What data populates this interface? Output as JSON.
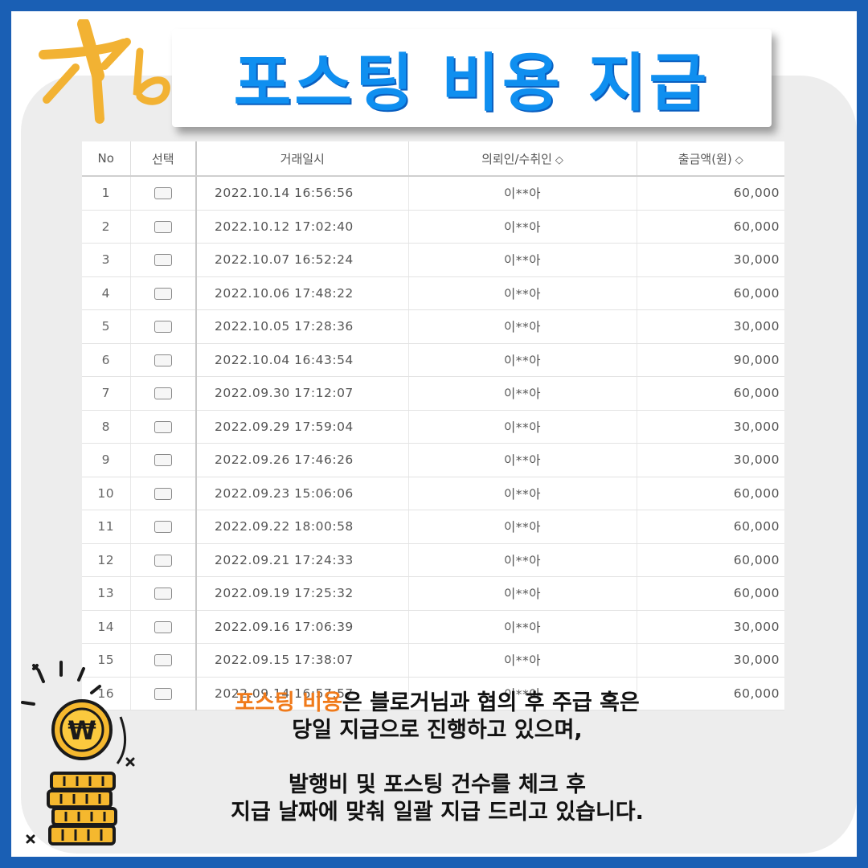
{
  "logo": {
    "text": "Kb"
  },
  "title": "포스팅 비용 지급",
  "table": {
    "headers": {
      "no": "No",
      "select": "선택",
      "datetime": "거래일시",
      "party": "의뢰인/수취인",
      "amount": "출금액(원)",
      "sort_icon": "◇"
    },
    "rows": [
      {
        "no": "1",
        "datetime": "2022.10.14  16:56:56",
        "party": "이**아",
        "amount": "60,000"
      },
      {
        "no": "2",
        "datetime": "2022.10.12  17:02:40",
        "party": "이**아",
        "amount": "60,000"
      },
      {
        "no": "3",
        "datetime": "2022.10.07  16:52:24",
        "party": "이**아",
        "amount": "30,000"
      },
      {
        "no": "4",
        "datetime": "2022.10.06  17:48:22",
        "party": "이**아",
        "amount": "60,000"
      },
      {
        "no": "5",
        "datetime": "2022.10.05  17:28:36",
        "party": "이**아",
        "amount": "30,000"
      },
      {
        "no": "6",
        "datetime": "2022.10.04  16:43:54",
        "party": "이**아",
        "amount": "90,000"
      },
      {
        "no": "7",
        "datetime": "2022.09.30  17:12:07",
        "party": "이**아",
        "amount": "60,000"
      },
      {
        "no": "8",
        "datetime": "2022.09.29  17:59:04",
        "party": "이**아",
        "amount": "30,000"
      },
      {
        "no": "9",
        "datetime": "2022.09.26  17:46:26",
        "party": "이**아",
        "amount": "30,000"
      },
      {
        "no": "10",
        "datetime": "2022.09.23  15:06:06",
        "party": "이**아",
        "amount": "60,000"
      },
      {
        "no": "11",
        "datetime": "2022.09.22  18:00:58",
        "party": "이**아",
        "amount": "60,000"
      },
      {
        "no": "12",
        "datetime": "2022.09.21  17:24:33",
        "party": "이**아",
        "amount": "60,000"
      },
      {
        "no": "13",
        "datetime": "2022.09.19  17:25:32",
        "party": "이**아",
        "amount": "60,000"
      },
      {
        "no": "14",
        "datetime": "2022.09.16  17:06:39",
        "party": "이**아",
        "amount": "30,000"
      },
      {
        "no": "15",
        "datetime": "2022.09.15  17:38:07",
        "party": "이**아",
        "amount": "30,000"
      },
      {
        "no": "16",
        "datetime": "2022.09.14  16:57:57",
        "party": "이**아",
        "amount": "60,000"
      }
    ]
  },
  "caption": {
    "highlight": "포스팅 비용",
    "line1_rest": "은 블로거님과 협의 후 주급 혹은",
    "line2": "당일 지급으로 진행하고 있으며,",
    "line3": "발행비 및 포스팅 건수를 체크 후",
    "line4": "지급 날짜에 맞춰 일괄 지급 드리고 있습니다."
  },
  "colors": {
    "border_blue": "#1a5fb4",
    "title_blue": "#0f8ff0",
    "highlight_orange": "#f07a1a",
    "logo_gold": "#f2b233"
  },
  "icons": {
    "coin": "won-coin-icon"
  }
}
